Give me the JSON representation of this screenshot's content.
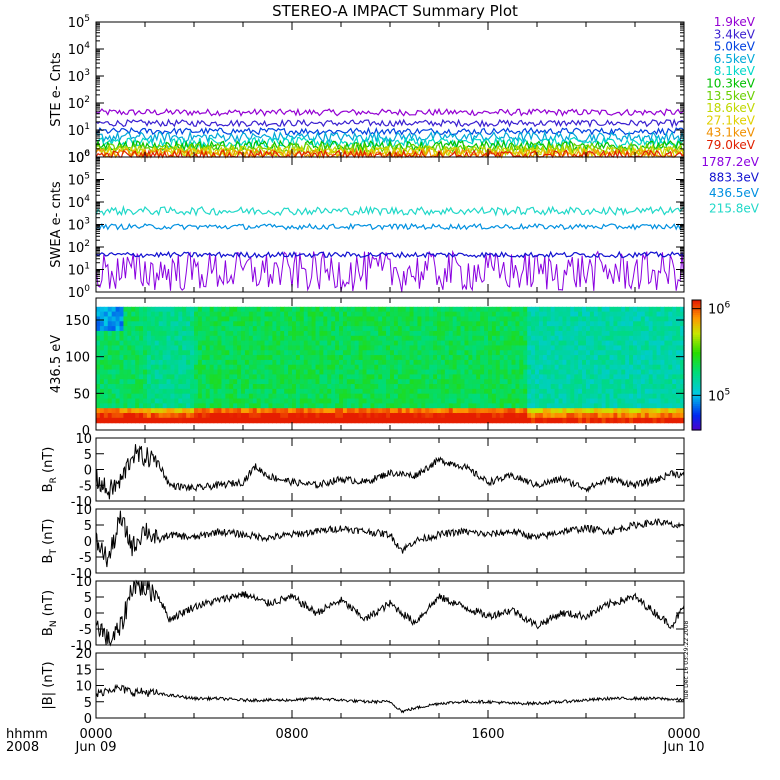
{
  "title": "STEREO-A IMPACT Summary Plot",
  "xaxis": {
    "left_label_1": "hhmm",
    "left_label_2": "2008",
    "ticks": [
      {
        "hour": 0,
        "label": "0000",
        "sub": "Jun 09"
      },
      {
        "hour": 8,
        "label": "0800",
        "sub": ""
      },
      {
        "hour": 16,
        "label": "1600",
        "sub": ""
      },
      {
        "hour": 24,
        "label": "0000",
        "sub": "Jun 10"
      }
    ],
    "range_hours": [
      0,
      24
    ]
  },
  "timestamp": "Tue Dec 16 03:29:22 2008",
  "panels": {
    "ste": {
      "ylabel": "STE e- Cnts",
      "yticks": [
        {
          "base": "10",
          "exp": "0",
          "v": 0
        },
        {
          "base": "10",
          "exp": "1",
          "v": 1
        },
        {
          "base": "10",
          "exp": "2",
          "v": 2
        },
        {
          "base": "10",
          "exp": "3",
          "v": 3
        },
        {
          "base": "10",
          "exp": "4",
          "v": 4
        },
        {
          "base": "10",
          "exp": "5",
          "v": 5
        }
      ],
      "log_range": [
        0,
        5
      ]
    },
    "swea": {
      "ylabel": "SWEA e- cnts",
      "yticks": [
        {
          "base": "10",
          "exp": "0",
          "v": 0
        },
        {
          "base": "10",
          "exp": "1",
          "v": 1
        },
        {
          "base": "10",
          "exp": "2",
          "v": 2
        },
        {
          "base": "10",
          "exp": "3",
          "v": 3
        },
        {
          "base": "10",
          "exp": "4",
          "v": 4
        },
        {
          "base": "10",
          "exp": "5",
          "v": 5
        },
        {
          "base": "10",
          "exp": "6",
          "v": 6
        }
      ],
      "log_range": [
        0,
        6
      ]
    },
    "pad": {
      "ylabel": "436.5 eV",
      "yticks": [
        "0",
        "50",
        "100",
        "150"
      ],
      "ytick_values": [
        0,
        50,
        100,
        150
      ],
      "range": [
        0,
        180
      ],
      "colorbar_labels": [
        {
          "base": "10",
          "exp": "6",
          "v": 6
        },
        {
          "base": "10",
          "exp": "5",
          "v": 5
        }
      ],
      "colorbar_log_range": [
        4.6,
        6.1
      ]
    },
    "br": {
      "ylabel_main": "B",
      "ylabel_sub": "R",
      "ylabel_unit": " (nT)",
      "yticks": [
        "10",
        "5",
        "0",
        "-5",
        "-10"
      ],
      "range": [
        -10,
        10
      ]
    },
    "bt": {
      "ylabel_main": "B",
      "ylabel_sub": "T",
      "ylabel_unit": " (nT)",
      "yticks": [
        "10",
        "5",
        "0",
        "-5",
        "-10"
      ],
      "range": [
        -10,
        10
      ]
    },
    "bn": {
      "ylabel_main": "B",
      "ylabel_sub": "N",
      "ylabel_unit": " (nT)",
      "yticks": [
        "10",
        "5",
        "0",
        "-5",
        "-10"
      ],
      "range": [
        -10,
        10
      ]
    },
    "bmag": {
      "ylabel_main": "|B|",
      "ylabel_sub": "",
      "ylabel_unit": " (nT)",
      "yticks": [
        "20",
        "15",
        "10",
        "5",
        "0"
      ],
      "range": [
        0,
        20
      ]
    }
  },
  "chart_data": [
    {
      "type": "line",
      "panel": "ste",
      "ylabel": "STE e- Cnts",
      "yscale": "log",
      "ylim": [
        1,
        100000
      ],
      "x_range_hours": [
        0,
        24
      ],
      "series": [
        {
          "name": "1.9keV",
          "color": "#9400d3",
          "level": 45
        },
        {
          "name": "3.4keV",
          "color": "#3a1fd0",
          "level": 18
        },
        {
          "name": "5.0keV",
          "color": "#0040e0",
          "level": 9
        },
        {
          "name": "6.5keV",
          "color": "#00a8d8",
          "level": 5.5
        },
        {
          "name": "8.1keV",
          "color": "#00d8c8",
          "level": 3.5
        },
        {
          "name": "10.3keV",
          "color": "#00c000",
          "level": 2.6
        },
        {
          "name": "13.5keV",
          "color": "#6ad000",
          "level": 2.1
        },
        {
          "name": "18.6keV",
          "color": "#c0d800",
          "level": 1.7
        },
        {
          "name": "27.1keV",
          "color": "#e0d000",
          "level": 1.45
        },
        {
          "name": "43.1keV",
          "color": "#f09000",
          "level": 1.3
        },
        {
          "name": "79.0keV",
          "color": "#e02000",
          "level": 1.15
        }
      ]
    },
    {
      "type": "line",
      "panel": "swea",
      "ylabel": "SWEA e- cnts",
      "yscale": "log",
      "ylim": [
        1,
        1000000
      ],
      "x_range_hours": [
        0,
        24
      ],
      "series": [
        {
          "name": "1787.2eV",
          "color": "#8a00e0",
          "level": 8
        },
        {
          "name": "883.3eV",
          "color": "#1010d0",
          "level": 45
        },
        {
          "name": "436.5eV",
          "color": "#0090e0",
          "level": 800
        },
        {
          "name": "215.8eV",
          "color": "#20d8c8",
          "level": 4000
        }
      ]
    },
    {
      "type": "heatmap",
      "panel": "pad",
      "ylabel": "436.5 eV",
      "ylim": [
        0,
        180
      ],
      "x_range_hours": [
        0,
        24
      ],
      "colorbar": "log counts, 10^5 to 10^6"
    },
    {
      "type": "line",
      "panel": "br",
      "ylabel": "B_R (nT)",
      "ylim": [
        -10,
        10
      ],
      "x_range_hours": [
        0,
        24
      ],
      "x": [
        0,
        0.5,
        1,
        1.5,
        2,
        2.5,
        3,
        4,
        5,
        6,
        6.5,
        7,
        8,
        9,
        10,
        11,
        12,
        13,
        14,
        15,
        16,
        17,
        18,
        19,
        20,
        21,
        22,
        23,
        23.5,
        24
      ],
      "y": [
        -3,
        -7,
        -4,
        5,
        4,
        3,
        -5,
        -6,
        -5,
        -4,
        1,
        -2,
        -4,
        -5,
        -3,
        -4,
        -1,
        -2,
        3,
        1,
        -4,
        -2,
        -5,
        -3,
        -6,
        -3,
        -5,
        -3,
        -1,
        -2
      ]
    },
    {
      "type": "line",
      "panel": "bt",
      "ylabel": "B_T (nT)",
      "ylim": [
        -10,
        10
      ],
      "x_range_hours": [
        0,
        24
      ],
      "x": [
        0,
        0.5,
        1,
        1.5,
        2,
        2.5,
        3,
        4,
        5,
        6,
        7,
        8,
        9,
        10,
        11,
        12,
        12.5,
        13,
        14,
        15,
        16,
        17,
        18,
        19,
        20,
        21,
        22,
        23,
        23.5,
        24
      ],
      "y": [
        0,
        -6,
        7,
        -2,
        4,
        0,
        2,
        1,
        3,
        2,
        1,
        2,
        3,
        4,
        3,
        2,
        -3,
        0,
        2,
        3,
        2,
        3,
        1,
        3,
        4,
        3,
        5,
        6,
        5,
        4
      ]
    },
    {
      "type": "line",
      "panel": "bn",
      "ylabel": "B_N (nT)",
      "ylim": [
        -10,
        10
      ],
      "x_range_hours": [
        0,
        24
      ],
      "x": [
        0,
        0.5,
        1,
        1.5,
        2,
        2.5,
        3,
        4,
        5,
        6,
        7,
        8,
        9,
        10,
        11,
        12,
        13,
        14,
        15,
        16,
        17,
        18,
        19,
        20,
        21,
        22,
        23,
        23.5,
        24
      ],
      "y": [
        -2,
        -9,
        -5,
        9,
        8,
        6,
        -2,
        2,
        4,
        6,
        3,
        5,
        0,
        4,
        -2,
        3,
        -3,
        5,
        2,
        -1,
        1,
        -4,
        0,
        -1,
        3,
        5,
        -1,
        -4,
        2
      ]
    },
    {
      "type": "line",
      "panel": "bmag",
      "ylabel": "|B| (nT)",
      "ylim": [
        0,
        20
      ],
      "x_range_hours": [
        0,
        24
      ],
      "x": [
        0,
        0.5,
        1,
        1.5,
        2,
        3,
        4,
        5,
        6,
        7,
        8,
        9,
        10,
        11,
        12,
        12.5,
        13,
        14,
        15,
        16,
        17,
        18,
        19,
        20,
        21,
        22,
        23,
        24
      ],
      "y": [
        7,
        9,
        9,
        8,
        8,
        7,
        6,
        6,
        5.5,
        5.5,
        5.5,
        6,
        5.5,
        5,
        5,
        2,
        3,
        4.5,
        5,
        5,
        4.5,
        4.5,
        5,
        5.5,
        6,
        6,
        6,
        5.5
      ]
    }
  ]
}
